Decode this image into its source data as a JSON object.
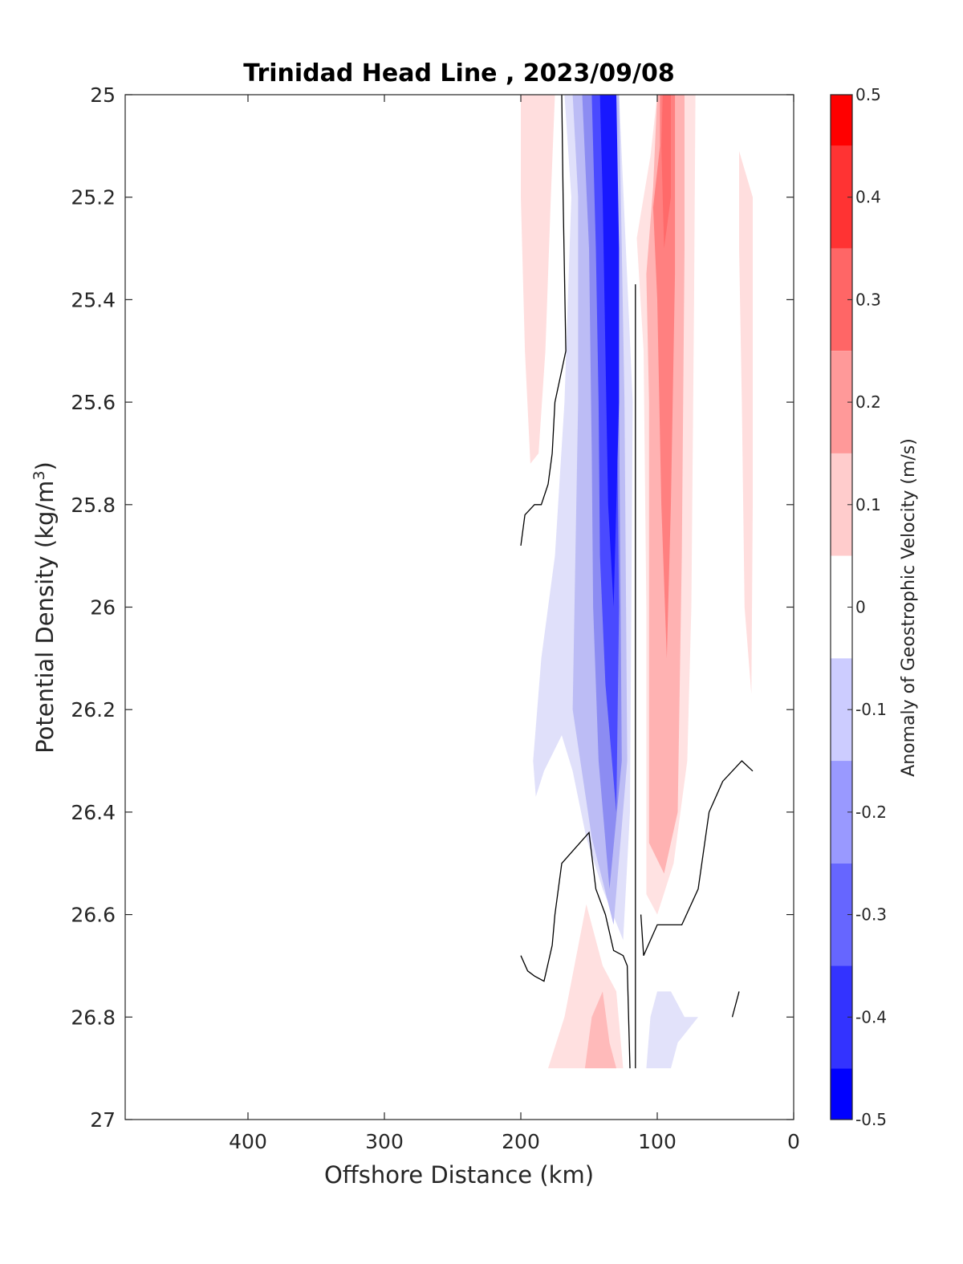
{
  "chart_data": {
    "type": "heatmap",
    "title": "Trinidad Head Line , 2023/09/08",
    "xlabel": "Offshore Distance (km)",
    "ylabel_prefix": "Potential Density (kg/m",
    "ylabel_sup": "3",
    "ylabel_suffix": ")",
    "xlim": [
      490,
      0
    ],
    "ylim": [
      25,
      27
    ],
    "y_reversed": true,
    "x_reversed": true,
    "x_ticks": [
      400,
      300,
      200,
      100,
      0
    ],
    "x_tick_labels": [
      "400",
      "300",
      "200",
      "100",
      "0"
    ],
    "y_ticks": [
      25,
      25.2,
      25.4,
      25.6,
      25.8,
      26,
      26.2,
      26.4,
      26.6,
      26.8,
      27
    ],
    "y_tick_labels": [
      "25",
      "25.2",
      "25.4",
      "25.6",
      "25.8",
      "26",
      "26.2",
      "26.4",
      "26.6",
      "26.8",
      "27"
    ],
    "colorbar": {
      "label": "Anomaly of Geostrophic Velocity (m/s)",
      "range": [
        -0.5,
        0.5
      ],
      "ticks": [
        0.5,
        0.4,
        0.3,
        0.2,
        0.1,
        0,
        -0.1,
        -0.2,
        -0.3,
        -0.4,
        -0.5
      ],
      "tick_labels": [
        "0.5",
        "0.4",
        "0.3",
        "0.2",
        "0.1",
        "0",
        "-0.1",
        "-0.2",
        "-0.3",
        "-0.4",
        "-0.5"
      ],
      "levels": [
        {
          "lo": 0.45,
          "hi": 0.5,
          "color": "#ff0000"
        },
        {
          "lo": 0.35,
          "hi": 0.45,
          "color": "#ff3333"
        },
        {
          "lo": 0.25,
          "hi": 0.35,
          "color": "#ff6666"
        },
        {
          "lo": 0.15,
          "hi": 0.25,
          "color": "#ff9999"
        },
        {
          "lo": 0.05,
          "hi": 0.15,
          "color": "#ffcccc"
        },
        {
          "lo": -0.05,
          "hi": 0.05,
          "color": "#ffffff"
        },
        {
          "lo": -0.15,
          "hi": -0.05,
          "color": "#ccccff"
        },
        {
          "lo": -0.25,
          "hi": -0.15,
          "color": "#9999ff"
        },
        {
          "lo": -0.35,
          "hi": -0.25,
          "color": "#6666ff"
        },
        {
          "lo": -0.45,
          "hi": -0.35,
          "color": "#3333ff"
        },
        {
          "lo": -0.5,
          "hi": -0.45,
          "color": "#0000ff"
        }
      ]
    },
    "filled_regions": [
      {
        "level": 0.1,
        "color": "#ffdede",
        "points": [
          [
            200,
            25
          ],
          [
            175,
            25
          ],
          [
            178,
            25.2
          ],
          [
            182,
            25.5
          ],
          [
            187,
            25.7
          ],
          [
            193,
            25.72
          ],
          [
            197,
            25.5
          ],
          [
            200,
            25.2
          ]
        ]
      },
      {
        "level": 0.1,
        "color": "#ffdede",
        "points": [
          [
            40,
            25.11
          ],
          [
            30,
            25.2
          ],
          [
            30,
            25.8
          ],
          [
            31,
            26.17
          ],
          [
            36,
            26.0
          ],
          [
            38,
            25.6
          ],
          [
            40,
            25.3
          ]
        ]
      },
      {
        "level": -0.1,
        "color": "#e0e0fa",
        "points": [
          [
            168,
            25
          ],
          [
            163,
            25.2
          ],
          [
            168,
            25.6
          ],
          [
            175,
            25.9
          ],
          [
            185,
            26.1
          ],
          [
            191,
            26.3
          ],
          [
            189,
            26.37
          ],
          [
            183,
            26.32
          ],
          [
            170,
            26.25
          ],
          [
            162,
            26.32
          ],
          [
            152,
            26.45
          ],
          [
            140,
            26.55
          ],
          [
            125,
            26.65
          ],
          [
            120,
            26.4
          ],
          [
            118,
            25.6
          ],
          [
            128,
            25
          ],
          [
            150,
            25
          ]
        ]
      },
      {
        "level": -0.2,
        "color": "#bcbcf5",
        "points": [
          [
            162,
            25
          ],
          [
            158,
            25.2
          ],
          [
            158,
            25.6
          ],
          [
            160,
            25.9
          ],
          [
            162,
            26.2
          ],
          [
            148,
            26.45
          ],
          [
            132,
            26.62
          ],
          [
            122,
            26.3
          ],
          [
            124,
            25.6
          ],
          [
            128,
            25
          ],
          [
            145,
            25
          ]
        ]
      },
      {
        "level": -0.3,
        "color": "#8c8cf2",
        "points": [
          [
            155,
            25
          ],
          [
            150,
            25.3
          ],
          [
            148,
            25.7
          ],
          [
            147,
            26.0
          ],
          [
            143,
            26.3
          ],
          [
            135,
            26.55
          ],
          [
            126,
            26.3
          ],
          [
            128,
            25.6
          ],
          [
            130,
            25
          ]
        ]
      },
      {
        "level": -0.4,
        "color": "#4a4aff",
        "points": [
          [
            148,
            25
          ],
          [
            145,
            25.3
          ],
          [
            143,
            25.6
          ],
          [
            142,
            25.9
          ],
          [
            138,
            26.15
          ],
          [
            130,
            26.4
          ],
          [
            128,
            26.0
          ],
          [
            130,
            25.5
          ],
          [
            130,
            25
          ]
        ]
      },
      {
        "level": -0.5,
        "color": "#1818ff",
        "points": [
          [
            142,
            25
          ],
          [
            140,
            25.2
          ],
          [
            138,
            25.5
          ],
          [
            136,
            25.8
          ],
          [
            132,
            26.0
          ],
          [
            128,
            25.6
          ],
          [
            128,
            25.3
          ],
          [
            130,
            25
          ]
        ]
      },
      {
        "level": 0.1,
        "color": "#ffe2e2",
        "points": [
          [
            100,
            25
          ],
          [
            72,
            25
          ],
          [
            73,
            25.4
          ],
          [
            75,
            26.0
          ],
          [
            78,
            26.3
          ],
          [
            88,
            26.5
          ],
          [
            100,
            26.6
          ],
          [
            108,
            26.56
          ],
          [
            108,
            26.0
          ],
          [
            110,
            25.5
          ],
          [
            115,
            25.28
          ],
          [
            105,
            25.12
          ]
        ]
      },
      {
        "level": 0.2,
        "color": "#ffb2b2",
        "points": [
          [
            100,
            25
          ],
          [
            80,
            25
          ],
          [
            80,
            25.3
          ],
          [
            82,
            25.9
          ],
          [
            85,
            26.4
          ],
          [
            95,
            26.52
          ],
          [
            106,
            26.46
          ],
          [
            106,
            25.6
          ],
          [
            108,
            25.35
          ],
          [
            103,
            25.18
          ]
        ]
      },
      {
        "level": 0.3,
        "color": "#ff8080",
        "points": [
          [
            98,
            25
          ],
          [
            87,
            25
          ],
          [
            87,
            25.35
          ],
          [
            90,
            25.8
          ],
          [
            93,
            26.1
          ],
          [
            97,
            25.8
          ],
          [
            100,
            25.4
          ],
          [
            103,
            25.22
          ],
          [
            98,
            25.1
          ]
        ]
      },
      {
        "level": 0.4,
        "color": "#ff6a6a",
        "points": [
          [
            96,
            25
          ],
          [
            90,
            25
          ],
          [
            90,
            25.2
          ],
          [
            95,
            25.3
          ],
          [
            97,
            25.1
          ]
        ]
      },
      {
        "level": 0.1,
        "color": "#ffe0e0",
        "points": [
          [
            152,
            26.58
          ],
          [
            140,
            26.7
          ],
          [
            130,
            26.75
          ],
          [
            125,
            26.9
          ],
          [
            180,
            26.9
          ],
          [
            168,
            26.8
          ]
        ]
      },
      {
        "level": 0.2,
        "color": "#ffbaba",
        "points": [
          [
            140,
            26.75
          ],
          [
            148,
            26.8
          ],
          [
            153,
            26.9
          ],
          [
            130,
            26.9
          ],
          [
            135,
            26.85
          ]
        ]
      },
      {
        "level": -0.1,
        "color": "#e2e2fa",
        "points": [
          [
            108,
            26.9
          ],
          [
            105,
            26.8
          ],
          [
            100,
            26.75
          ],
          [
            90,
            26.75
          ],
          [
            80,
            26.8
          ],
          [
            70,
            26.8
          ],
          [
            85,
            26.85
          ],
          [
            90,
            26.9
          ]
        ]
      }
    ],
    "contour_lines": [
      {
        "value": 0,
        "points": [
          [
            170,
            25
          ],
          [
            169,
            25.2
          ],
          [
            168,
            25.35
          ],
          [
            167,
            25.5
          ],
          [
            171,
            25.55
          ],
          [
            175,
            25.6
          ],
          [
            177,
            25.7
          ],
          [
            180,
            25.76
          ],
          [
            185,
            25.8
          ],
          [
            190,
            25.8
          ],
          [
            197,
            25.82
          ],
          [
            200,
            25.88
          ]
        ]
      },
      {
        "value": 0,
        "points": [
          [
            116,
            25.37
          ],
          [
            116,
            25.6
          ],
          [
            116,
            26.0
          ],
          [
            116,
            26.3
          ],
          [
            116,
            26.6
          ],
          [
            116,
            26.9
          ]
        ]
      },
      {
        "value": 0,
        "points": [
          [
            200,
            26.68
          ],
          [
            195,
            26.71
          ],
          [
            190,
            26.72
          ],
          [
            183,
            26.73
          ],
          [
            177,
            26.66
          ],
          [
            175,
            26.6
          ],
          [
            170,
            26.5
          ],
          [
            160,
            26.47
          ],
          [
            150,
            26.44
          ],
          [
            145,
            26.55
          ],
          [
            138,
            26.6
          ],
          [
            132,
            26.67
          ],
          [
            125,
            26.68
          ],
          [
            122,
            26.7
          ],
          [
            120,
            26.9
          ]
        ]
      },
      {
        "value": 0,
        "points": [
          [
            112,
            26.6
          ],
          [
            110,
            26.68
          ],
          [
            105,
            26.65
          ],
          [
            100,
            26.62
          ],
          [
            92,
            26.62
          ],
          [
            82,
            26.62
          ],
          [
            70,
            26.55
          ],
          [
            62,
            26.4
          ],
          [
            52,
            26.34
          ],
          [
            45,
            26.32
          ],
          [
            38,
            26.3
          ],
          [
            30,
            26.32
          ]
        ]
      },
      {
        "value": 0,
        "points": [
          [
            45,
            26.8
          ],
          [
            40,
            26.75
          ]
        ]
      }
    ]
  }
}
